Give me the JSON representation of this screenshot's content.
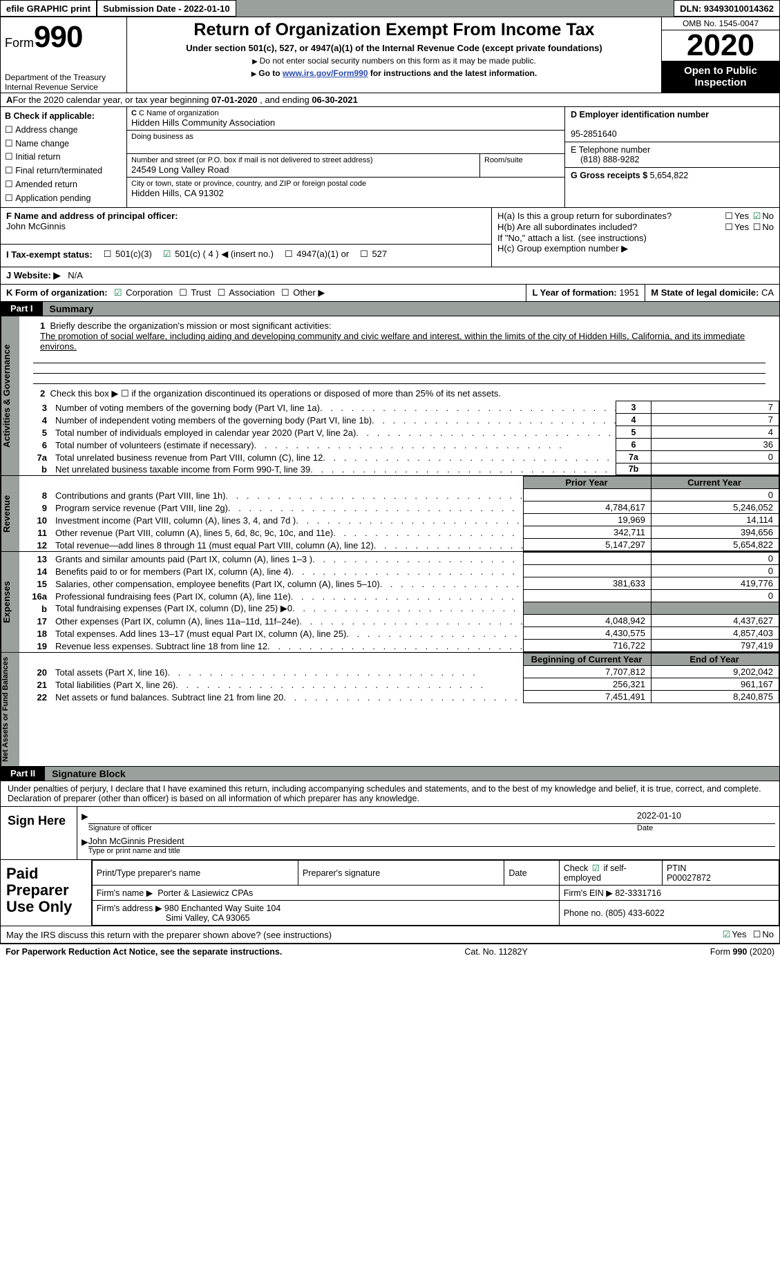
{
  "topbar": {
    "efile": "efile GRAPHIC print",
    "submission": "Submission Date - 2022-01-10",
    "dln": "DLN: 93493010014362"
  },
  "header": {
    "form_prefix": "Form",
    "form_number": "990",
    "dept1": "Department of the Treasury",
    "dept2": "Internal Revenue Service",
    "title": "Return of Organization Exempt From Income Tax",
    "subtitle": "Under section 501(c), 527, or 4947(a)(1) of the Internal Revenue Code (except private foundations)",
    "note1": "Do not enter social security numbers on this form as it may be made public.",
    "note2_pre": "Go to ",
    "note2_link": "www.irs.gov/Form990",
    "note2_post": " for instructions and the latest information.",
    "omb": "OMB No. 1545-0047",
    "year": "2020",
    "open": "Open to Public Inspection"
  },
  "rowA": {
    "text_pre": "For the 2020 calendar year, or tax year beginning ",
    "begin": "07-01-2020",
    "mid": " , and ending ",
    "end": "06-30-2021"
  },
  "colB": {
    "title": "B Check if applicable:",
    "items": [
      "Address change",
      "Name change",
      "Initial return",
      "Final return/terminated",
      "Amended return",
      "Application pending"
    ]
  },
  "boxC": {
    "label": "C Name of organization",
    "name": "Hidden Hills Community Association",
    "dba_label": "Doing business as",
    "street_label": "Number and street (or P.O. box if mail is not delivered to street address)",
    "room_label": "Room/suite",
    "street": "24549 Long Valley Road",
    "city_label": "City or town, state or province, country, and ZIP or foreign postal code",
    "city": "Hidden Hills, CA  91302"
  },
  "boxD": {
    "label": "D Employer identification number",
    "val": "95-2851640"
  },
  "boxE": {
    "label": "E Telephone number",
    "val": "(818) 888-9282"
  },
  "boxG": {
    "label": "G Gross receipts $ ",
    "val": "5,654,822"
  },
  "boxF": {
    "label": "F Name and address of principal officer:",
    "name": "John McGinnis"
  },
  "boxH": {
    "ha": "H(a)  Is this a group return for subordinates?",
    "hb": "H(b)  Are all subordinates included?",
    "ifno": "If \"No,\" attach a list. (see instructions)",
    "hc": "H(c)  Group exemption number ▶",
    "yes": "Yes",
    "no": "No"
  },
  "lineI": {
    "label": "I  Tax-exempt status:",
    "o1": "501(c)(3)",
    "o2": "501(c) ( 4 ) ◀ (insert no.)",
    "o3": "4947(a)(1) or",
    "o4": "527"
  },
  "lineJ": {
    "label": "J  Website: ▶",
    "val": "N/A"
  },
  "lineK": {
    "label": "K Form of organization:",
    "o1": "Corporation",
    "o2": "Trust",
    "o3": "Association",
    "o4": "Other ▶"
  },
  "lineL": {
    "label": "L Year of formation: ",
    "val": "1951"
  },
  "lineM": {
    "label": "M State of legal domicile: ",
    "val": "CA"
  },
  "part1": {
    "tag": "Part I",
    "title": "Summary"
  },
  "gov": {
    "q1": "Briefly describe the organization's mission or most significant activities:",
    "q1_text": "The promotion of social welfare, including aiding and developing community and civic welfare and interest, within the limits of the city of Hidden Hills, California, and its immediate environs.",
    "q2": "Check this box ▶ ☐  if the organization discontinued its operations or disposed of more than 25% of its net assets.",
    "rows": [
      {
        "n": "3",
        "t": "Number of voting members of the governing body (Part VI, line 1a)",
        "b": "3",
        "v": "7"
      },
      {
        "n": "4",
        "t": "Number of independent voting members of the governing body (Part VI, line 1b)",
        "b": "4",
        "v": "7"
      },
      {
        "n": "5",
        "t": "Total number of individuals employed in calendar year 2020 (Part V, line 2a)",
        "b": "5",
        "v": "4"
      },
      {
        "n": "6",
        "t": "Total number of volunteers (estimate if necessary)",
        "b": "6",
        "v": "36"
      },
      {
        "n": "7a",
        "t": "Total unrelated business revenue from Part VIII, column (C), line 12",
        "b": "7a",
        "v": "0"
      },
      {
        "n": "b",
        "t": "Net unrelated business taxable income from Form 990-T, line 39",
        "b": "7b",
        "v": ""
      }
    ]
  },
  "rev": {
    "hdr_prior": "Prior Year",
    "hdr_cur": "Current Year",
    "rows": [
      {
        "n": "8",
        "t": "Contributions and grants (Part VIII, line 1h)",
        "p": "",
        "c": "0"
      },
      {
        "n": "9",
        "t": "Program service revenue (Part VIII, line 2g)",
        "p": "4,784,617",
        "c": "5,246,052"
      },
      {
        "n": "10",
        "t": "Investment income (Part VIII, column (A), lines 3, 4, and 7d )",
        "p": "19,969",
        "c": "14,114"
      },
      {
        "n": "11",
        "t": "Other revenue (Part VIII, column (A), lines 5, 6d, 8c, 9c, 10c, and 11e)",
        "p": "342,711",
        "c": "394,656"
      },
      {
        "n": "12",
        "t": "Total revenue—add lines 8 through 11 (must equal Part VIII, column (A), line 12)",
        "p": "5,147,297",
        "c": "5,654,822"
      }
    ]
  },
  "exp": {
    "rows": [
      {
        "n": "13",
        "t": "Grants and similar amounts paid (Part IX, column (A), lines 1–3 )",
        "p": "",
        "c": "0"
      },
      {
        "n": "14",
        "t": "Benefits paid to or for members (Part IX, column (A), line 4)",
        "p": "",
        "c": "0"
      },
      {
        "n": "15",
        "t": "Salaries, other compensation, employee benefits (Part IX, column (A), lines 5–10)",
        "p": "381,633",
        "c": "419,776"
      },
      {
        "n": "16a",
        "t": "Professional fundraising fees (Part IX, column (A), line 11e)",
        "p": "",
        "c": "0"
      },
      {
        "n": "b",
        "t": "Total fundraising expenses (Part IX, column (D), line 25) ▶0",
        "p": "shade",
        "c": "shade"
      },
      {
        "n": "17",
        "t": "Other expenses (Part IX, column (A), lines 11a–11d, 11f–24e)",
        "p": "4,048,942",
        "c": "4,437,627"
      },
      {
        "n": "18",
        "t": "Total expenses. Add lines 13–17 (must equal Part IX, column (A), line 25)",
        "p": "4,430,575",
        "c": "4,857,403"
      },
      {
        "n": "19",
        "t": "Revenue less expenses. Subtract line 18 from line 12",
        "p": "716,722",
        "c": "797,419"
      }
    ]
  },
  "net": {
    "hdr_begin": "Beginning of Current Year",
    "hdr_end": "End of Year",
    "rows": [
      {
        "n": "20",
        "t": "Total assets (Part X, line 16)",
        "p": "7,707,812",
        "c": "9,202,042"
      },
      {
        "n": "21",
        "t": "Total liabilities (Part X, line 26)",
        "p": "256,321",
        "c": "961,167"
      },
      {
        "n": "22",
        "t": "Net assets or fund balances. Subtract line 21 from line 20",
        "p": "7,451,491",
        "c": "8,240,875"
      }
    ]
  },
  "part2": {
    "tag": "Part II",
    "title": "Signature Block"
  },
  "sig": {
    "decl": "Under penalties of perjury, I declare that I have examined this return, including accompanying schedules and statements, and to the best of my knowledge and belief, it is true, correct, and complete. Declaration of preparer (other than officer) is based on all information of which preparer has any knowledge.",
    "sign_here": "Sign Here",
    "sig_officer": "Signature of officer",
    "date": "Date",
    "date_val": "2022-01-10",
    "type_name_label": "Type or print name and title",
    "type_name": "John McGinnis President"
  },
  "prep": {
    "title": "Paid Preparer Use Only",
    "h1": "Print/Type preparer's name",
    "h2": "Preparer's signature",
    "h3": "Date",
    "h4_pre": "Check ",
    "h4_post": " if self-employed",
    "h5": "PTIN",
    "h5v": "P00027872",
    "firm_name_l": "Firm's name  ▶",
    "firm_name": "Porter & Lasiewicz CPAs",
    "firm_ein_l": "Firm's EIN ▶",
    "firm_ein": "82-3331716",
    "firm_addr_l": "Firm's address ▶",
    "firm_addr1": "980 Enchanted Way Suite 104",
    "firm_addr2": "Simi Valley, CA  93065",
    "phone_l": "Phone no.",
    "phone": "(805) 433-6022"
  },
  "discuss": {
    "t": "May the IRS discuss this return with the preparer shown above? (see instructions)",
    "yes": "Yes",
    "no": "No"
  },
  "footer": {
    "l": "For Paperwork Reduction Act Notice, see the separate instructions.",
    "m": "Cat. No. 11282Y",
    "r": "Form 990 (2020)"
  },
  "side_labels": {
    "gov": "Activities & Governance",
    "rev": "Revenue",
    "exp": "Expenses",
    "net": "Net Assets or Fund Balances"
  }
}
